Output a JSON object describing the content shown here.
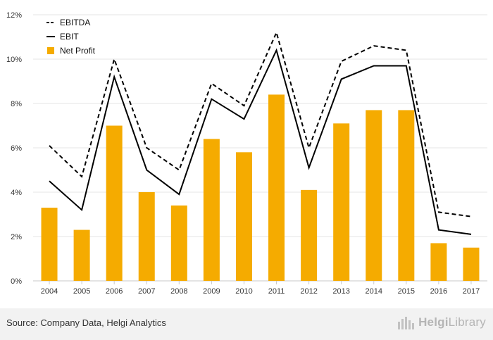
{
  "chart_data": {
    "type": "bar",
    "categories": [
      "2004",
      "2005",
      "2006",
      "2007",
      "2008",
      "2009",
      "2010",
      "2011",
      "2012",
      "2013",
      "2014",
      "2015",
      "2016",
      "2017"
    ],
    "series": [
      {
        "name": "EBITDA",
        "render": "line",
        "style": "dashed",
        "color": "#000000",
        "values": [
          6.1,
          4.7,
          10.0,
          6.0,
          5.0,
          8.9,
          7.9,
          11.2,
          6.0,
          9.9,
          10.6,
          10.4,
          3.1,
          2.9
        ]
      },
      {
        "name": "EBIT",
        "render": "line",
        "style": "solid",
        "color": "#000000",
        "values": [
          4.5,
          3.2,
          9.2,
          5.0,
          3.9,
          8.2,
          7.3,
          10.4,
          5.1,
          9.1,
          9.7,
          9.7,
          2.3,
          2.1
        ]
      },
      {
        "name": "Net Profit",
        "render": "bar",
        "color": "#f5ab00",
        "values": [
          3.3,
          2.3,
          7.0,
          4.0,
          3.4,
          6.4,
          5.8,
          8.4,
          4.1,
          7.1,
          7.7,
          7.7,
          1.7,
          1.5
        ]
      }
    ],
    "y_ticks": [
      "0%",
      "2%",
      "4%",
      "6%",
      "8%",
      "10%",
      "12%"
    ],
    "ylim": [
      0,
      12
    ],
    "grid": true,
    "legend": "top-left",
    "source": "Source: Company Data, Helgi Analytics"
  },
  "logo": {
    "prefix": "Helgi",
    "suffix": "Library",
    "icon": "bar-chart-logo-icon"
  }
}
